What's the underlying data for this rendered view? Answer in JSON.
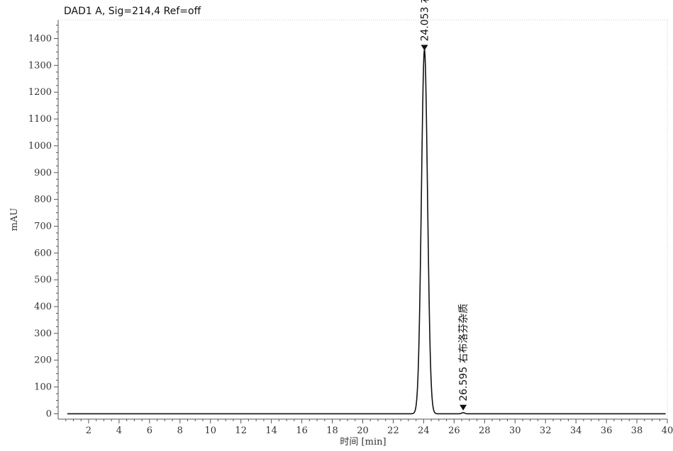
{
  "chart_data": {
    "type": "line",
    "title": "DAD1 A, Sig=214,4 Ref=off",
    "xlabel": "时间 [min]",
    "ylabel": "mAU",
    "xlim": [
      0,
      40
    ],
    "ylim": [
      -20,
      1470
    ],
    "x_ticks": [
      2,
      4,
      6,
      8,
      10,
      12,
      14,
      16,
      18,
      20,
      22,
      24,
      26,
      28,
      30,
      32,
      34,
      36,
      38,
      40
    ],
    "y_ticks": [
      0,
      100,
      200,
      300,
      400,
      500,
      600,
      700,
      800,
      900,
      1000,
      1100,
      1200,
      1300,
      1400
    ],
    "grid": false,
    "series": [
      {
        "peaks": [
          {
            "rt": 24.053,
            "height": 1358,
            "sigma": 0.2
          },
          {
            "rt": 26.595,
            "height": 4,
            "sigma": 0.1
          }
        ],
        "baseline": 0
      }
    ],
    "annotations": [
      {
        "rt": "24.053",
        "name": "右布洛芬",
        "x": 24.053,
        "y": 1358
      },
      {
        "rt": "26.595",
        "name": "右布洛芬杂质",
        "x": 26.595,
        "y": 15
      }
    ],
    "colors": {
      "trace": "#111111",
      "axis": "#555555"
    }
  }
}
